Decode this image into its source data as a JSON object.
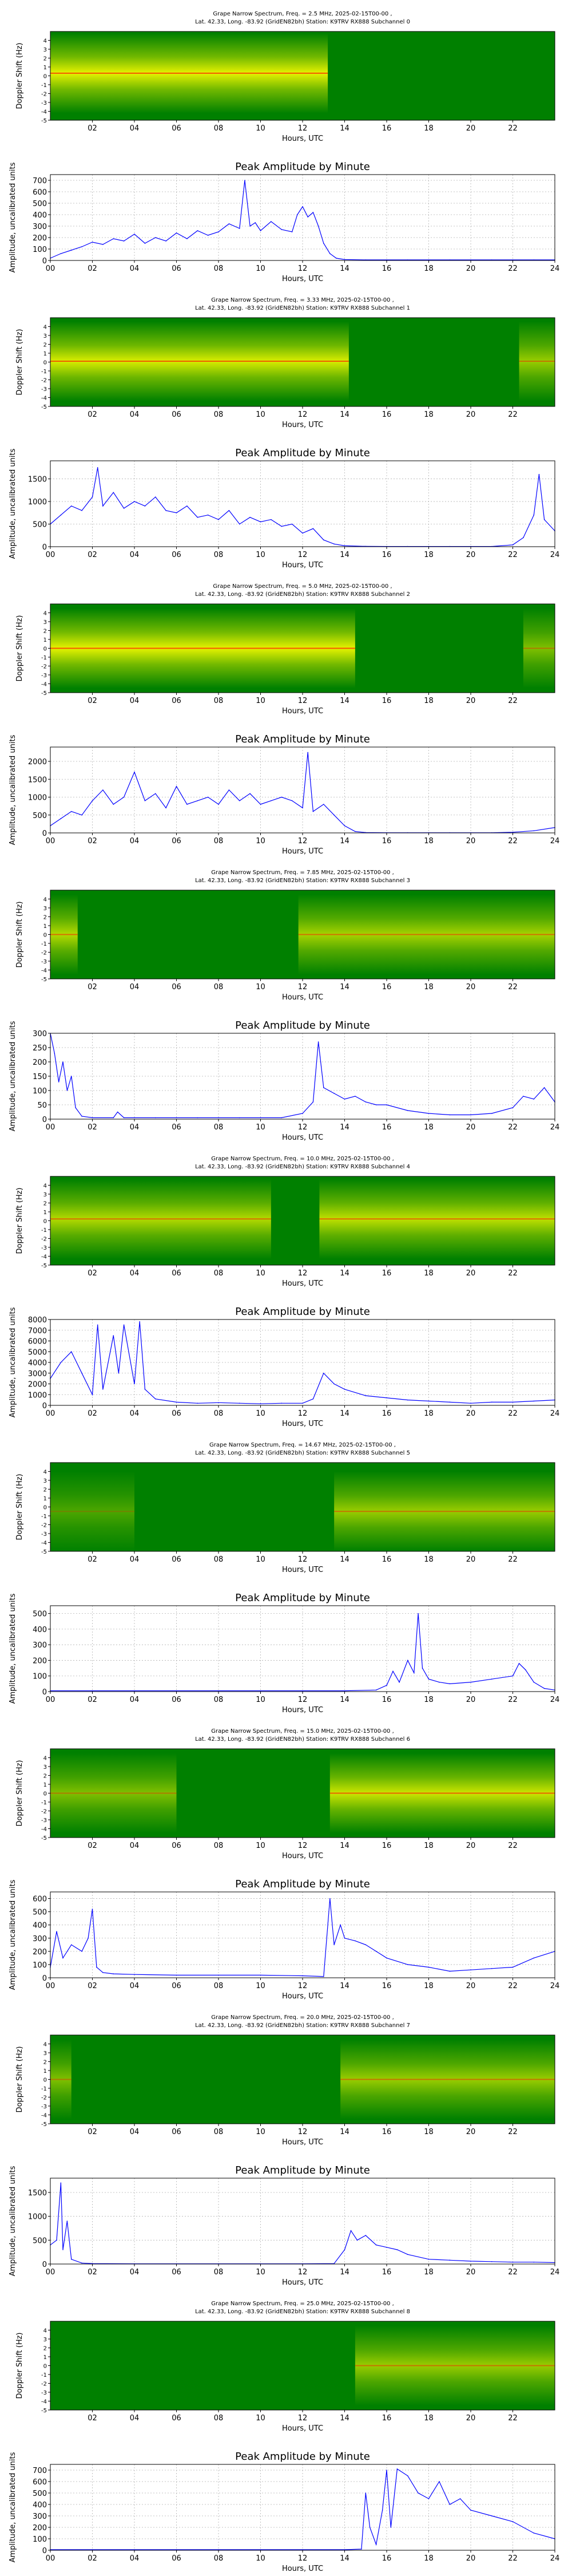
{
  "figure": {
    "spectrogram_ylabel": "Doppler Shift (Hz)",
    "spectrogram_ytick_labels": [
      "4",
      "3",
      "2",
      "1",
      "0",
      "-1",
      "-2",
      "-3",
      "-4",
      "-5"
    ],
    "spectrogram_xtick_labels": [
      "02",
      "04",
      "06",
      "08",
      "10",
      "12",
      "14",
      "16",
      "18",
      "20",
      "22"
    ],
    "spectrogram_ylim": [
      -5,
      5
    ],
    "amplitude_title": "Peak Amplitude by Minute",
    "amplitude_ylabel": "Amplitude, uncalibrated units",
    "amplitude_xtick_labels": [
      "00",
      "02",
      "04",
      "06",
      "08",
      "10",
      "12",
      "14",
      "16",
      "18",
      "20",
      "22",
      "24"
    ],
    "xlabel": "Hours, UTC",
    "colors": {
      "line": "#0000ff",
      "background": "#008000",
      "active": "#ffff00",
      "peak": "#ff0000"
    }
  },
  "chart_data": [
    {
      "type": "heatmap",
      "title_line1": "Grape Narrow Spectrum, Freq. = 2.5 MHz, 2025-02-15T00-00 ,",
      "title_line2": "Lat.  42.33, Long. -83.92 (GridEN82bh) Station: K9TRV RX888 Subchannel 0",
      "xlabel": "Hours, UTC",
      "ylabel": "Doppler Shift (Hz)",
      "xlim": [
        0,
        24
      ],
      "ylim": [
        -5,
        5
      ],
      "active_segments": [
        {
          "start": 0.0,
          "end": 13.2,
          "level": 0.9
        }
      ],
      "trace": {
        "center_hz": 0.3
      }
    },
    {
      "type": "line",
      "title": "Peak Amplitude by Minute",
      "xlabel": "Hours, UTC",
      "ylabel": "Amplitude, uncalibrated units",
      "xlim": [
        0,
        24
      ],
      "ylim": [
        0,
        750
      ],
      "yticks": [
        0,
        100,
        200,
        300,
        400,
        500,
        600,
        700
      ],
      "x": [
        0,
        0.5,
        1,
        1.5,
        2,
        2.5,
        3,
        3.5,
        4,
        4.5,
        5,
        5.5,
        6,
        6.5,
        7,
        7.5,
        8,
        8.5,
        9,
        9.25,
        9.5,
        9.75,
        10,
        10.5,
        11,
        11.5,
        11.75,
        12,
        12.25,
        12.5,
        12.75,
        13,
        13.3,
        13.6,
        14,
        15,
        16,
        17,
        18,
        19,
        20,
        21,
        22,
        23,
        24
      ],
      "y": [
        20,
        60,
        90,
        120,
        160,
        140,
        190,
        170,
        230,
        150,
        200,
        170,
        240,
        190,
        260,
        220,
        250,
        320,
        280,
        700,
        300,
        330,
        260,
        340,
        270,
        250,
        400,
        470,
        380,
        420,
        300,
        150,
        60,
        20,
        8,
        5,
        5,
        5,
        5,
        5,
        5,
        5,
        5,
        5,
        5
      ]
    },
    {
      "type": "heatmap",
      "title_line1": "Grape Narrow Spectrum, Freq. = 3.33 MHz, 2025-02-15T00-00 ,",
      "title_line2": "Lat.  42.33, Long. -83.92 (GridEN82bh) Station: K9TRV RX888 Subchannel 1",
      "xlabel": "Hours, UTC",
      "ylabel": "Doppler Shift (Hz)",
      "xlim": [
        0,
        24
      ],
      "ylim": [
        -5,
        5
      ],
      "active_segments": [
        {
          "start": 0.0,
          "end": 14.2,
          "level": 0.85
        },
        {
          "start": 22.3,
          "end": 24.0,
          "level": 0.6
        }
      ],
      "trace": {
        "center_hz": 0.1
      }
    },
    {
      "type": "line",
      "title": "Peak Amplitude by Minute",
      "xlabel": "Hours, UTC",
      "ylabel": "Amplitude, uncalibrated units",
      "xlim": [
        0,
        24
      ],
      "ylim": [
        0,
        1900
      ],
      "yticks": [
        0,
        500,
        1000,
        1500
      ],
      "x": [
        0,
        0.5,
        1,
        1.5,
        2,
        2.25,
        2.5,
        3,
        3.5,
        4,
        4.5,
        5,
        5.5,
        6,
        6.5,
        7,
        7.5,
        8,
        8.5,
        9,
        9.5,
        10,
        10.5,
        11,
        11.5,
        12,
        12.5,
        13,
        13.5,
        14,
        15,
        16,
        17,
        18,
        19,
        20,
        21,
        22,
        22.5,
        23,
        23.25,
        23.5,
        24
      ],
      "y": [
        500,
        700,
        900,
        800,
        1100,
        1750,
        900,
        1200,
        850,
        1000,
        900,
        1100,
        800,
        750,
        900,
        650,
        700,
        600,
        800,
        500,
        650,
        550,
        600,
        450,
        500,
        300,
        400,
        150,
        60,
        20,
        8,
        5,
        5,
        5,
        5,
        5,
        5,
        40,
        200,
        700,
        1600,
        600,
        350
      ]
    },
    {
      "type": "heatmap",
      "title_line1": "Grape Narrow Spectrum, Freq. = 5.0 MHz, 2025-02-15T00-00 ,",
      "title_line2": "Lat.  42.33, Long. -83.92 (GridEN82bh) Station: K9TRV RX888 Subchannel 2",
      "xlabel": "Hours, UTC",
      "ylabel": "Doppler Shift (Hz)",
      "xlim": [
        0,
        24
      ],
      "ylim": [
        -5,
        5
      ],
      "active_segments": [
        {
          "start": 0.0,
          "end": 14.5,
          "level": 0.9
        },
        {
          "start": 22.5,
          "end": 24.0,
          "level": 0.5
        }
      ],
      "trace": {
        "center_hz": 0.0
      }
    },
    {
      "type": "line",
      "title": "Peak Amplitude by Minute",
      "xlabel": "Hours, UTC",
      "ylabel": "Amplitude, uncalibrated units",
      "xlim": [
        0,
        24
      ],
      "ylim": [
        0,
        2400
      ],
      "yticks": [
        0,
        500,
        1000,
        1500,
        2000
      ],
      "x": [
        0,
        0.5,
        1,
        1.5,
        2,
        2.5,
        3,
        3.5,
        4,
        4.5,
        5,
        5.5,
        6,
        6.5,
        7,
        7.5,
        8,
        8.5,
        9,
        9.5,
        10,
        10.5,
        11,
        11.5,
        12,
        12.25,
        12.5,
        13,
        13.5,
        14,
        14.5,
        15,
        16,
        17,
        18,
        19,
        20,
        21,
        22,
        23,
        24
      ],
      "y": [
        200,
        400,
        600,
        500,
        900,
        1200,
        800,
        1000,
        1700,
        900,
        1100,
        700,
        1300,
        800,
        900,
        1000,
        800,
        1200,
        900,
        1100,
        800,
        900,
        1000,
        900,
        700,
        2250,
        600,
        800,
        500,
        200,
        40,
        10,
        5,
        5,
        5,
        5,
        5,
        5,
        20,
        60,
        150
      ]
    },
    {
      "type": "heatmap",
      "title_line1": "Grape Narrow Spectrum, Freq. = 7.85 MHz, 2025-02-15T00-00 ,",
      "title_line2": "Lat.  42.33, Long. -83.92 (GridEN82bh) Station: K9TRV RX888 Subchannel 3",
      "xlabel": "Hours, UTC",
      "ylabel": "Doppler Shift (Hz)",
      "xlim": [
        0,
        24
      ],
      "ylim": [
        -5,
        5
      ],
      "active_segments": [
        {
          "start": 0.0,
          "end": 1.3,
          "level": 0.7
        },
        {
          "start": 11.8,
          "end": 24.0,
          "level": 0.65
        }
      ],
      "trace": {
        "center_hz": 0.0
      }
    },
    {
      "type": "line",
      "title": "Peak Amplitude by Minute",
      "xlabel": "Hours, UTC",
      "ylabel": "Amplitude, uncalibrated units",
      "xlim": [
        0,
        24
      ],
      "ylim": [
        0,
        300
      ],
      "yticks": [
        0,
        50,
        100,
        150,
        200,
        250,
        300
      ],
      "x": [
        0,
        0.2,
        0.4,
        0.6,
        0.8,
        1,
        1.2,
        1.5,
        2,
        3,
        3.2,
        3.5,
        4,
        5,
        6,
        7,
        8,
        9,
        10,
        11,
        12,
        12.5,
        12.75,
        13,
        13.5,
        14,
        14.5,
        15,
        15.5,
        16,
        17,
        18,
        19,
        20,
        21,
        22,
        22.5,
        23,
        23.5,
        24
      ],
      "y": [
        300,
        230,
        130,
        200,
        100,
        150,
        40,
        10,
        5,
        5,
        25,
        5,
        5,
        5,
        5,
        5,
        5,
        5,
        5,
        5,
        20,
        60,
        270,
        110,
        90,
        70,
        80,
        60,
        50,
        50,
        30,
        20,
        15,
        15,
        20,
        40,
        80,
        70,
        110,
        60
      ]
    },
    {
      "type": "heatmap",
      "title_line1": "Grape Narrow Spectrum, Freq. = 10.0 MHz, 2025-02-15T00-00 ,",
      "title_line2": "Lat.  42.33, Long. -83.92 (GridEN82bh) Station: K9TRV RX888 Subchannel 4",
      "xlabel": "Hours, UTC",
      "ylabel": "Doppler Shift (Hz)",
      "xlim": [
        0,
        24
      ],
      "ylim": [
        -5,
        5
      ],
      "active_segments": [
        {
          "start": 0.0,
          "end": 10.5,
          "level": 0.7
        },
        {
          "start": 12.8,
          "end": 24.0,
          "level": 0.75
        }
      ],
      "trace": {
        "center_hz": 0.2
      }
    },
    {
      "type": "line",
      "title": "Peak Amplitude by Minute",
      "xlabel": "Hours, UTC",
      "ylabel": "Amplitude, uncalibrated units",
      "xlim": [
        0,
        24
      ],
      "ylim": [
        0,
        8000
      ],
      "yticks": [
        0,
        1000,
        2000,
        3000,
        4000,
        5000,
        6000,
        7000,
        8000
      ],
      "x": [
        0,
        0.5,
        1,
        1.5,
        2,
        2.25,
        2.5,
        3,
        3.25,
        3.5,
        4,
        4.25,
        4.5,
        5,
        6,
        7,
        8,
        9,
        10,
        11,
        12,
        12.5,
        13,
        13.5,
        14,
        15,
        16,
        17,
        18,
        19,
        20,
        21,
        22,
        23,
        24
      ],
      "y": [
        2500,
        4000,
        5000,
        3000,
        1000,
        7500,
        1500,
        6500,
        3000,
        7500,
        2000,
        7800,
        1500,
        600,
        300,
        200,
        250,
        200,
        150,
        200,
        200,
        600,
        3000,
        2000,
        1500,
        900,
        700,
        500,
        400,
        300,
        200,
        300,
        300,
        400,
        500
      ]
    },
    {
      "type": "heatmap",
      "title_line1": "Grape Narrow Spectrum, Freq. = 14.67 MHz, 2025-02-15T00-00 ,",
      "title_line2": "Lat.  42.33, Long. -83.92 (GridEN82bh) Station: K9TRV RX888 Subchannel 5",
      "xlabel": "Hours, UTC",
      "ylabel": "Doppler Shift (Hz)",
      "xlim": [
        0,
        24
      ],
      "ylim": [
        -5,
        5
      ],
      "active_segments": [
        {
          "start": 0.0,
          "end": 4.0,
          "level": 0.3
        },
        {
          "start": 13.5,
          "end": 24.0,
          "level": 0.6
        }
      ],
      "trace": {
        "center_hz": -0.5
      }
    },
    {
      "type": "line",
      "title": "Peak Amplitude by Minute",
      "xlabel": "Hours, UTC",
      "ylabel": "Amplitude, uncalibrated units",
      "xlim": [
        0,
        24
      ],
      "ylim": [
        0,
        550
      ],
      "yticks": [
        0,
        100,
        200,
        300,
        400,
        500
      ],
      "x": [
        0,
        2,
        4,
        6,
        8,
        10,
        12,
        14,
        15.5,
        16,
        16.3,
        16.6,
        17,
        17.3,
        17.5,
        17.7,
        18,
        18.5,
        19,
        20,
        21,
        22,
        22.3,
        22.6,
        23,
        23.5,
        24
      ],
      "y": [
        5,
        5,
        5,
        5,
        5,
        5,
        5,
        5,
        10,
        40,
        130,
        60,
        200,
        120,
        500,
        150,
        80,
        60,
        50,
        60,
        80,
        100,
        180,
        140,
        60,
        20,
        10
      ]
    },
    {
      "type": "heatmap",
      "title_line1": "Grape Narrow Spectrum, Freq. = 15.0 MHz, 2025-02-15T00-00 ,",
      "title_line2": "Lat.  42.33, Long. -83.92 (GridEN82bh) Station: K9TRV RX888 Subchannel 6",
      "xlabel": "Hours, UTC",
      "ylabel": "Doppler Shift (Hz)",
      "xlim": [
        0,
        24
      ],
      "ylim": [
        -5,
        5
      ],
      "active_segments": [
        {
          "start": 0.0,
          "end": 6.0,
          "level": 0.5
        },
        {
          "start": 13.3,
          "end": 24.0,
          "level": 0.8
        }
      ],
      "trace": {
        "center_hz": 0.0
      }
    },
    {
      "type": "line",
      "title": "Peak Amplitude by Minute",
      "xlabel": "Hours, UTC",
      "ylabel": "Amplitude, uncalibrated units",
      "xlim": [
        0,
        24
      ],
      "ylim": [
        0,
        650
      ],
      "yticks": [
        0,
        100,
        200,
        300,
        400,
        500,
        600
      ],
      "x": [
        0,
        0.3,
        0.6,
        1,
        1.5,
        1.8,
        2,
        2.2,
        2.5,
        3,
        4,
        6,
        8,
        10,
        12,
        13,
        13.3,
        13.5,
        13.8,
        14,
        14.5,
        15,
        15.5,
        16,
        17,
        18,
        19,
        20,
        21,
        22,
        23,
        24
      ],
      "y": [
        80,
        350,
        150,
        250,
        200,
        300,
        520,
        80,
        40,
        30,
        25,
        20,
        20,
        20,
        15,
        10,
        600,
        250,
        400,
        300,
        280,
        250,
        200,
        150,
        100,
        80,
        50,
        60,
        70,
        80,
        150,
        200
      ]
    },
    {
      "type": "heatmap",
      "title_line1": "Grape Narrow Spectrum, Freq. = 20.0 MHz, 2025-02-15T00-00 ,",
      "title_line2": "Lat.  42.33, Long. -83.92 (GridEN82bh) Station: K9TRV RX888 Subchannel 7",
      "xlabel": "Hours, UTC",
      "ylabel": "Doppler Shift (Hz)",
      "xlim": [
        0,
        24
      ],
      "ylim": [
        -5,
        5
      ],
      "active_segments": [
        {
          "start": 0.0,
          "end": 1.0,
          "level": 0.5
        },
        {
          "start": 13.8,
          "end": 24.0,
          "level": 0.6
        }
      ],
      "trace": {
        "center_hz": 0.0
      }
    },
    {
      "type": "line",
      "title": "Peak Amplitude by Minute",
      "xlabel": "Hours, UTC",
      "ylabel": "Amplitude, uncalibrated units",
      "xlim": [
        0,
        24
      ],
      "ylim": [
        0,
        1800
      ],
      "yticks": [
        0,
        500,
        1000,
        1500
      ],
      "x": [
        0,
        0.3,
        0.5,
        0.6,
        0.8,
        1,
        1.5,
        2,
        4,
        6,
        8,
        10,
        12,
        13.5,
        14,
        14.3,
        14.6,
        15,
        15.5,
        16,
        16.5,
        17,
        18,
        19,
        20,
        21,
        22,
        23,
        24
      ],
      "y": [
        400,
        500,
        1700,
        300,
        900,
        100,
        20,
        10,
        5,
        5,
        5,
        5,
        5,
        10,
        300,
        700,
        500,
        600,
        400,
        350,
        300,
        200,
        100,
        80,
        60,
        50,
        40,
        40,
        30
      ]
    },
    {
      "type": "heatmap",
      "title_line1": "Grape Narrow Spectrum, Freq. = 25.0 MHz, 2025-02-15T00-00 ,",
      "title_line2": "Lat.  42.33, Long. -83.92 (GridEN82bh) Station: K9TRV RX888 Subchannel 8",
      "xlabel": "Hours, UTC",
      "ylabel": "Doppler Shift (Hz)",
      "xlim": [
        0,
        24
      ],
      "ylim": [
        -5,
        5
      ],
      "active_segments": [
        {
          "start": 14.5,
          "end": 24.0,
          "level": 0.6
        }
      ],
      "trace": {
        "center_hz": 0.0
      }
    },
    {
      "type": "line",
      "title": "Peak Amplitude by Minute",
      "xlabel": "Hours, UTC",
      "ylabel": "Amplitude, uncalibrated units",
      "xlim": [
        0,
        24
      ],
      "ylim": [
        0,
        750
      ],
      "yticks": [
        0,
        100,
        200,
        300,
        400,
        500,
        600,
        700
      ],
      "x": [
        0,
        2,
        4,
        6,
        8,
        10,
        12,
        14,
        14.8,
        15,
        15.2,
        15.5,
        15.8,
        16,
        16.2,
        16.5,
        17,
        17.5,
        18,
        18.5,
        19,
        19.5,
        20,
        21,
        22,
        23,
        24
      ],
      "y": [
        5,
        5,
        5,
        5,
        5,
        5,
        5,
        5,
        10,
        500,
        200,
        50,
        350,
        700,
        200,
        710,
        650,
        500,
        450,
        600,
        400,
        450,
        350,
        300,
        250,
        150,
        100
      ]
    }
  ]
}
